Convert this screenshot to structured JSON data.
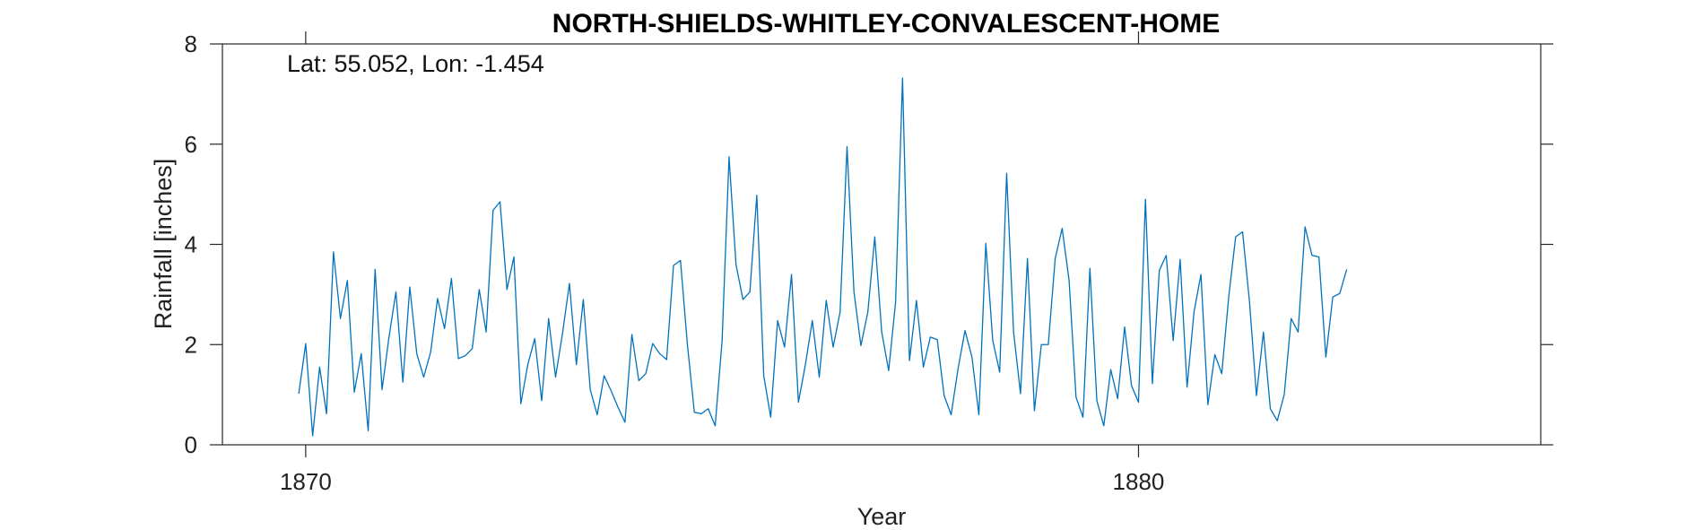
{
  "chart_data": {
    "type": "line",
    "title": "NORTH-SHIELDS-WHITLEY-CONVALESCENT-HOME",
    "annotation": "Lat: 55.052, Lon: -1.454",
    "xlabel": "Year",
    "ylabel": "Rainfall [inches]",
    "xlim": [
      1869.0,
      1884.83
    ],
    "ylim": [
      0,
      8
    ],
    "xticks": [
      1870,
      1880
    ],
    "xtick_labels": [
      "1870",
      "1880"
    ],
    "yticks": [
      0,
      2,
      4,
      6,
      8
    ],
    "ytick_labels": [
      "0",
      "2",
      "4",
      "6",
      "8"
    ],
    "grid": false,
    "series": [
      {
        "color": "#0072BD",
        "x_start": 1869.917,
        "x_step": 0.08333,
        "values": [
          1.02,
          2.02,
          0.18,
          1.55,
          0.62,
          3.85,
          2.52,
          3.28,
          1.05,
          1.82,
          0.28,
          3.5,
          1.1,
          2.15,
          3.05,
          1.25,
          3.15,
          1.82,
          1.35,
          1.85,
          2.92,
          2.32,
          3.32,
          1.72,
          1.78,
          1.92,
          3.1,
          2.25,
          4.68,
          4.85,
          3.1,
          3.75,
          0.82,
          1.6,
          2.12,
          0.88,
          2.52,
          1.35,
          2.22,
          3.22,
          1.6,
          2.9,
          1.1,
          0.6,
          1.38,
          1.08,
          0.75,
          0.45,
          2.2,
          1.28,
          1.42,
          2.02,
          1.82,
          1.7,
          3.58,
          3.68,
          2.0,
          0.65,
          0.62,
          0.72,
          0.38,
          2.08,
          5.75,
          3.6,
          2.9,
          3.05,
          4.98,
          1.38,
          0.55,
          2.48,
          1.95,
          3.4,
          0.85,
          1.6,
          2.48,
          1.35,
          2.88,
          1.95,
          2.65,
          5.95,
          3.05,
          1.98,
          2.65,
          4.15,
          2.25,
          1.48,
          2.85,
          7.32,
          1.68,
          2.88,
          1.55,
          2.15,
          2.1,
          0.98,
          0.6,
          1.52,
          2.28,
          1.75,
          0.6,
          4.02,
          2.08,
          1.45,
          5.42,
          2.25,
          1.02,
          3.72,
          0.68,
          2.0,
          2.0,
          3.72,
          4.32,
          3.28,
          0.95,
          0.55,
          3.52,
          0.88,
          0.38,
          1.5,
          0.92,
          2.35,
          1.18,
          0.85,
          4.9,
          1.22,
          3.48,
          3.78,
          2.08,
          3.7,
          1.15,
          2.65,
          3.4,
          0.8,
          1.8,
          1.42,
          2.95,
          4.15,
          4.25,
          2.85,
          0.98,
          2.25,
          0.72,
          0.48,
          1.0,
          2.52,
          2.25,
          4.35,
          3.78,
          3.75,
          1.75,
          2.95,
          3.02,
          3.5
        ]
      }
    ]
  }
}
